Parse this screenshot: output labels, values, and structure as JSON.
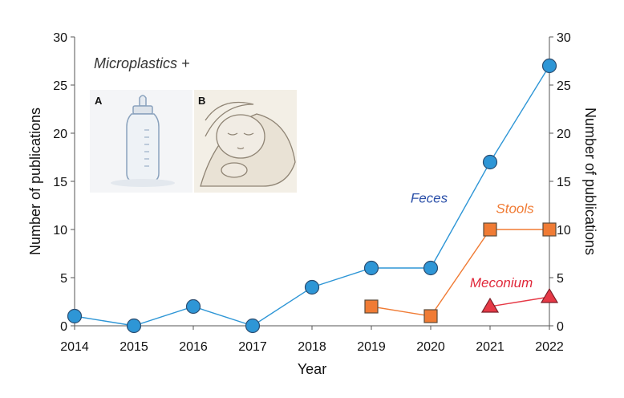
{
  "chart_data": {
    "type": "line",
    "title": "",
    "annotation": "Microplastics +",
    "xlabel": "Year",
    "ylabel_left": "Number of publications",
    "ylabel_right": "Number of publications",
    "ylim": [
      0,
      30
    ],
    "yticks": [
      0,
      5,
      10,
      15,
      20,
      25,
      30
    ],
    "x": [
      2014,
      2015,
      2016,
      2017,
      2018,
      2019,
      2020,
      2021,
      2022
    ],
    "series": [
      {
        "name": "Feces",
        "marker": "circle",
        "color": "#2e96d6",
        "line_color": "#2e96d6",
        "points": [
          [
            2014,
            1
          ],
          [
            2015,
            0
          ],
          [
            2016,
            2
          ],
          [
            2017,
            0
          ],
          [
            2018,
            4
          ],
          [
            2019,
            6
          ],
          [
            2020,
            6
          ],
          [
            2021,
            17
          ],
          [
            2022,
            27
          ]
        ]
      },
      {
        "name": "Stools",
        "marker": "square",
        "color": "#f07b34",
        "line_color": "#f07b34",
        "points": [
          [
            2019,
            2
          ],
          [
            2020,
            1
          ],
          [
            2021,
            10
          ],
          [
            2022,
            10
          ]
        ]
      },
      {
        "name": "Meconium",
        "marker": "triangle",
        "color": "#e63946",
        "line_color": "#e63946",
        "points": [
          [
            2021,
            2
          ],
          [
            2022,
            3
          ]
        ]
      }
    ],
    "label_colors": {
      "Feces": "#2a4fa8",
      "Stools": "#f07b34",
      "Meconium": "#e0283a"
    },
    "inset_panels": [
      {
        "letter": "A",
        "icon": "baby-bottle-illustration"
      },
      {
        "letter": "B",
        "icon": "sleeping-baby-illustration"
      }
    ]
  }
}
